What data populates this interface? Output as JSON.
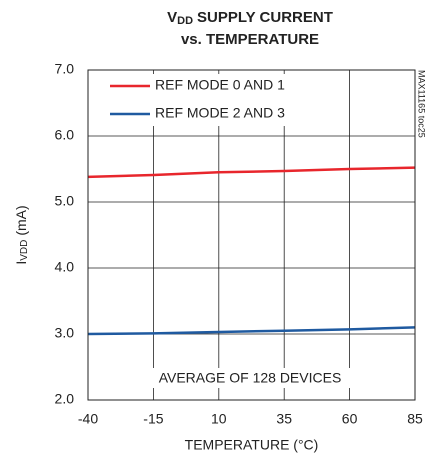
{
  "chart_data": {
    "type": "line",
    "title_lines": [
      {
        "main": "V",
        "sub": "DD",
        "rest": "SUPPLY CURRENT"
      },
      "vs. TEMPERATURE"
    ],
    "y_label": {
      "main": "I",
      "sub": "VDD",
      "rest": "(mA)"
    },
    "x_label": "TEMPERATURE (°C)",
    "annotation": "AVERAGE OF 128 DEVICES",
    "watermark": "MAX11165 toc25",
    "x": [
      -40,
      -15,
      10,
      35,
      60,
      85
    ],
    "series": [
      {
        "name": "REF MODE 0 AND 1",
        "color": "#e8262c",
        "values": [
          5.38,
          5.41,
          5.45,
          5.47,
          5.5,
          5.52
        ]
      },
      {
        "name": "REF MODE 2 AND 3",
        "color": "#1f5aa0",
        "values": [
          3.0,
          3.01,
          3.03,
          3.05,
          3.07,
          3.1
        ]
      }
    ],
    "xlim": [
      -40,
      85
    ],
    "xticks": [
      -40,
      -15,
      10,
      35,
      60,
      85
    ],
    "ylim": [
      2,
      7
    ],
    "yticks": [
      {
        "value": 2,
        "label": "2.0"
      },
      {
        "value": 3,
        "label": "3.0"
      },
      {
        "value": 4,
        "label": "4.0"
      },
      {
        "value": 5,
        "label": "5.0"
      },
      {
        "value": 6,
        "label": "6.0"
      },
      {
        "value": 7,
        "label": "7.0"
      }
    ],
    "grid": true,
    "legend": "top-left"
  }
}
